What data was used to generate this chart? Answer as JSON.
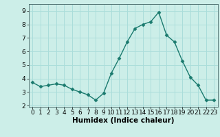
{
  "x": [
    0,
    1,
    2,
    3,
    4,
    5,
    6,
    7,
    8,
    9,
    10,
    11,
    12,
    13,
    14,
    15,
    16,
    17,
    18,
    19,
    20,
    21,
    22,
    23
  ],
  "y": [
    3.7,
    3.4,
    3.5,
    3.6,
    3.5,
    3.2,
    3.0,
    2.8,
    2.4,
    2.9,
    4.4,
    5.5,
    6.7,
    7.7,
    8.0,
    8.2,
    8.9,
    7.2,
    6.7,
    5.3,
    4.1,
    3.5,
    2.4,
    2.4
  ],
  "xlabel": "Humidex (Indice chaleur)",
  "xlim": [
    -0.5,
    23.5
  ],
  "ylim": [
    1.9,
    9.5
  ],
  "yticks": [
    2,
    3,
    4,
    5,
    6,
    7,
    8,
    9
  ],
  "xticks": [
    0,
    1,
    2,
    3,
    4,
    5,
    6,
    7,
    8,
    9,
    10,
    11,
    12,
    13,
    14,
    15,
    16,
    17,
    18,
    19,
    20,
    21,
    22,
    23
  ],
  "line_color": "#1a7a6e",
  "marker": "D",
  "marker_size": 2.5,
  "bg_color": "#cceee8",
  "grid_color": "#aaddda",
  "axis_label_fontsize": 7.5,
  "tick_fontsize": 6.5
}
